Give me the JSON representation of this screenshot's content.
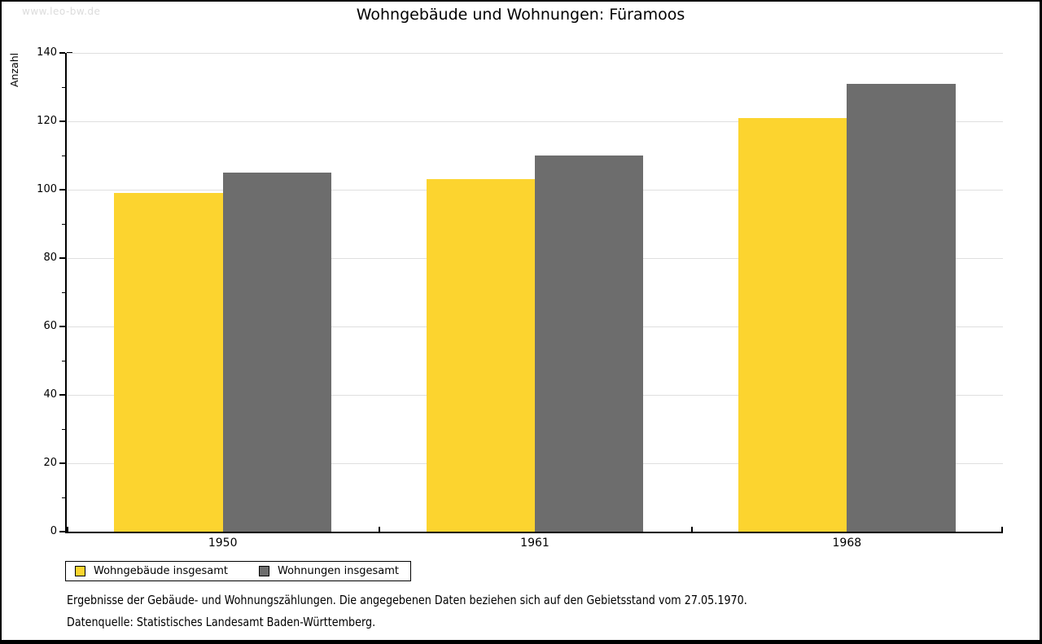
{
  "watermark": "www.leo-bw.de",
  "title": "Wohngebäude und Wohnungen: Füramoos",
  "chart_data": {
    "type": "bar",
    "title": "Wohngebäude und Wohnungen: Füramoos",
    "xlabel": "",
    "ylabel": "Anzahl",
    "categories": [
      "1950",
      "1961",
      "1968"
    ],
    "series": [
      {
        "name": "Wohngebäude insgesamt",
        "color": "#FCD42F",
        "values": [
          99,
          103,
          121
        ]
      },
      {
        "name": "Wohnungen insgesamt",
        "color": "#6D6D6D",
        "values": [
          105,
          110,
          131
        ]
      }
    ],
    "ylim": [
      0,
      140
    ],
    "ytick_step": 20,
    "yminor_step": 10,
    "grid": true,
    "legend_position": "bottom-left"
  },
  "colors": {
    "grid": "#DFDFDF",
    "axis": "#000000",
    "watermark_text": "#DCDCDC"
  },
  "footnotes": [
    "Ergebnisse der Gebäude- und Wohnungszählungen. Die angegebenen Daten beziehen sich auf den Gebietsstand vom 27.05.1970.",
    "Datenquelle: Statistisches Landesamt Baden-Württemberg."
  ]
}
